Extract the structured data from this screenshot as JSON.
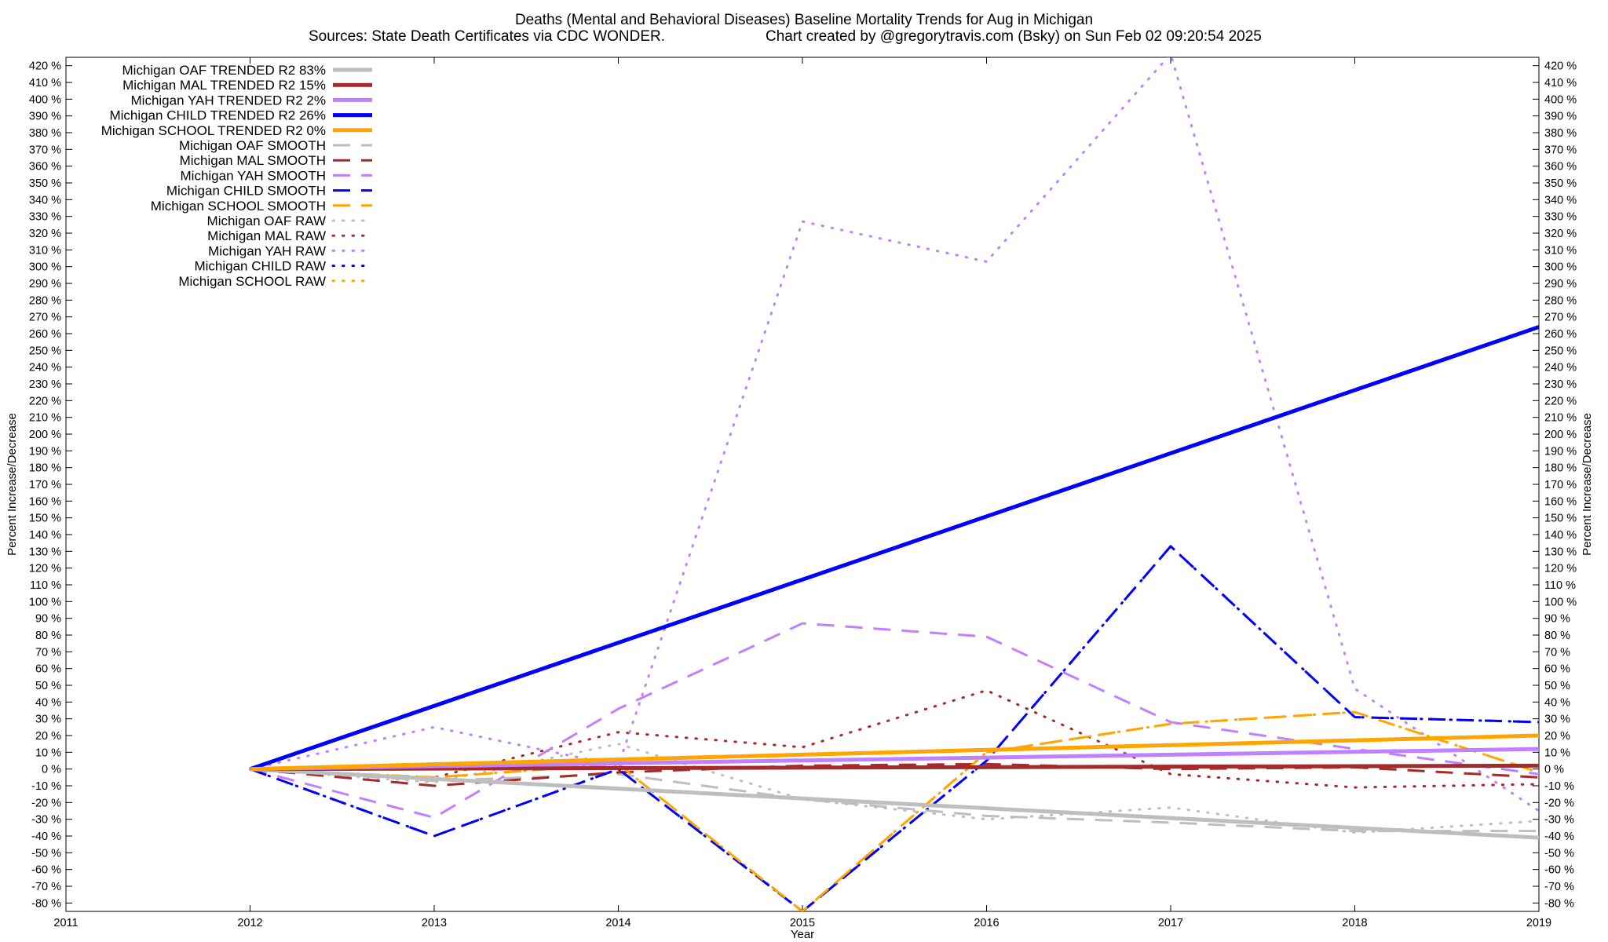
{
  "chart_data": {
    "type": "line",
    "title": "Deaths (Mental and Behavioral Diseases)  Baseline Mortality Trends for Aug in Michigan",
    "subtitle_left": "Sources: State Death Certificates via CDC WONDER.",
    "subtitle_right": "Chart created by @gregorytravis.com (Bsky) on Sun Feb 02 09:20:54 2025",
    "xlabel": "Year",
    "ylabel": "Percent Increase/Decrease",
    "y2label": "Percent Increase/Decrease",
    "xlim": [
      2011,
      2019
    ],
    "ylim": [
      -85,
      425
    ],
    "x_ticks": [
      2011,
      2012,
      2013,
      2014,
      2015,
      2016,
      2017,
      2018,
      2019
    ],
    "y_ticks": [
      -80,
      -70,
      -60,
      -50,
      -40,
      -30,
      -20,
      -10,
      0,
      10,
      20,
      30,
      40,
      50,
      60,
      70,
      80,
      90,
      100,
      110,
      120,
      130,
      140,
      150,
      160,
      170,
      180,
      190,
      200,
      210,
      220,
      230,
      240,
      250,
      260,
      270,
      280,
      290,
      300,
      310,
      320,
      330,
      340,
      350,
      360,
      370,
      380,
      390,
      400,
      410,
      420
    ],
    "y_tick_suffix": " %",
    "grid": false,
    "legend_position": "top-left",
    "series": [
      {
        "name": "Michigan OAF TRENDED R2  83%",
        "style": "solid",
        "color": "#bebebe",
        "x": [
          2012,
          2019
        ],
        "y": [
          0,
          -41
        ]
      },
      {
        "name": "Michigan MAL TRENDED R2  15%",
        "style": "solid",
        "color": "#a52a2a",
        "x": [
          2012,
          2019
        ],
        "y": [
          0,
          2
        ]
      },
      {
        "name": "Michigan YAH TRENDED R2   2%",
        "style": "solid",
        "color": "#c080ff",
        "x": [
          2012,
          2019
        ],
        "y": [
          0,
          12
        ]
      },
      {
        "name": "Michigan CHILD TRENDED R2  26%",
        "style": "solid",
        "color": "#0000ff",
        "x": [
          2012,
          2019
        ],
        "y": [
          0,
          264
        ]
      },
      {
        "name": "Michigan SCHOOL TRENDED R2   0%",
        "style": "solid",
        "color": "#ffa500",
        "x": [
          2012,
          2019
        ],
        "y": [
          0,
          20
        ]
      },
      {
        "name": "Michigan OAF SMOOTH",
        "style": "dashed",
        "color": "#bebebe",
        "x": [
          2012,
          2013,
          2014,
          2015,
          2016,
          2017,
          2018,
          2019
        ],
        "y": [
          0,
          -7,
          -3,
          -18,
          -28,
          -32,
          -37,
          -37
        ]
      },
      {
        "name": "Michigan MAL SMOOTH",
        "style": "dashed",
        "color": "#a52a2a",
        "x": [
          2012,
          2013,
          2014,
          2015,
          2016,
          2017,
          2018,
          2019
        ],
        "y": [
          0,
          -10,
          -2,
          2,
          3,
          0,
          1,
          -5
        ]
      },
      {
        "name": "Michigan YAH SMOOTH",
        "style": "dashed",
        "color": "#c080ff",
        "x": [
          2012,
          2013,
          2014,
          2015,
          2016,
          2017,
          2018,
          2019
        ],
        "y": [
          0,
          -29,
          36,
          87,
          79,
          28,
          12,
          -3
        ]
      },
      {
        "name": "Michigan CHILD SMOOTH",
        "style": "dashed",
        "color": "#0000ff",
        "x": [
          2012,
          2013,
          2014,
          2015,
          2016,
          2017,
          2018,
          2019
        ],
        "y": [
          0,
          -40,
          0,
          -85,
          5,
          133,
          31,
          28
        ]
      },
      {
        "name": "Michigan SCHOOL SMOOTH",
        "style": "dashed",
        "color": "#ffa500",
        "x": [
          2012,
          2013,
          2014,
          2015,
          2016,
          2017,
          2018,
          2019
        ],
        "y": [
          0,
          -5,
          3,
          -85,
          10,
          27,
          34,
          -2
        ]
      },
      {
        "name": "Michigan OAF RAW",
        "style": "dotted",
        "color": "#bebebe",
        "x": [
          2012,
          2013,
          2014,
          2015,
          2016,
          2017,
          2018,
          2019
        ],
        "y": [
          0,
          -8,
          15,
          -18,
          -30,
          -23,
          -38,
          -31
        ]
      },
      {
        "name": "Michigan MAL RAW",
        "style": "dotted",
        "color": "#a52a2a",
        "x": [
          2012,
          2013,
          2014,
          2015,
          2016,
          2017,
          2018,
          2019
        ],
        "y": [
          0,
          -5,
          22,
          13,
          47,
          -3,
          -11,
          -9
        ]
      },
      {
        "name": "Michigan YAH RAW",
        "style": "dotted",
        "color": "#c080ff",
        "x": [
          2012,
          2013,
          2014,
          2015,
          2016,
          2017,
          2018,
          2019
        ],
        "y": [
          0,
          25,
          2,
          327,
          303,
          427,
          48,
          -25
        ]
      },
      {
        "name": "Michigan CHILD RAW",
        "style": "dotted",
        "color": "#0000ff",
        "x": [
          2012,
          2013,
          2014,
          2015,
          2016,
          2017,
          2018,
          2019
        ],
        "y": [
          0,
          -40,
          0,
          -85,
          5,
          133,
          31,
          28
        ]
      },
      {
        "name": "Michigan SCHOOL RAW",
        "style": "dotted",
        "color": "#ffa500",
        "x": [
          2012,
          2013,
          2014,
          2015,
          2016,
          2017,
          2018,
          2019
        ],
        "y": [
          0,
          -5,
          3,
          -85,
          10,
          27,
          34,
          -2
        ]
      }
    ]
  }
}
